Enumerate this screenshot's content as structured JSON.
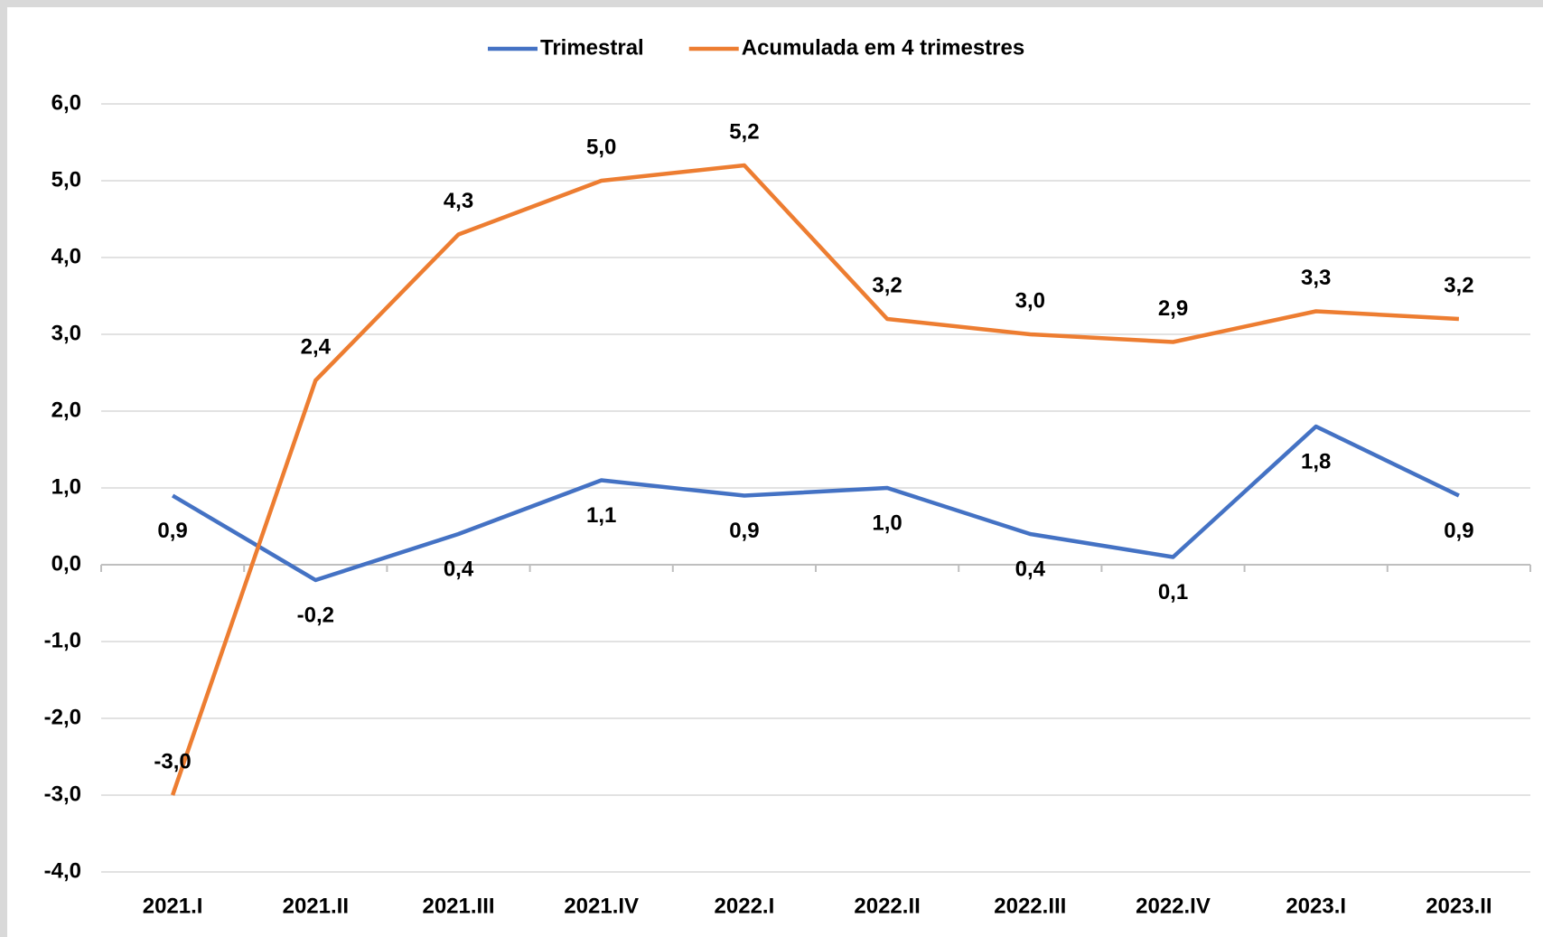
{
  "chart_data": {
    "type": "line",
    "categories": [
      "2021.I",
      "2021.II",
      "2021.III",
      "2021.IV",
      "2022.I",
      "2022.II",
      "2022.III",
      "2022.IV",
      "2023.I",
      "2023.II"
    ],
    "series": [
      {
        "name": "Trimestral",
        "color": "#4472c4",
        "values": [
          0.9,
          -0.2,
          0.4,
          1.1,
          0.9,
          1.0,
          0.4,
          0.1,
          1.8,
          0.9
        ],
        "value_labels": [
          "0,9",
          "-0,2",
          "0,4",
          "1,1",
          "0,9",
          "1,0",
          "0,4",
          "0,1",
          "1,8",
          "0,9"
        ]
      },
      {
        "name": "Acumulada em 4 trimestres",
        "color": "#ed7d31",
        "values": [
          -3.0,
          2.4,
          4.3,
          5.0,
          5.2,
          3.2,
          3.0,
          2.9,
          3.3,
          3.2
        ],
        "value_labels": [
          "-3,0",
          "2,4",
          "4,3",
          "5,0",
          "5,2",
          "3,2",
          "3,0",
          "2,9",
          "3,3",
          "3,2"
        ]
      }
    ],
    "ylim": [
      -4,
      6
    ],
    "yticks": [
      {
        "value": -4,
        "label": "-4,0"
      },
      {
        "value": -3,
        "label": "-3,0"
      },
      {
        "value": -2,
        "label": "-2,0"
      },
      {
        "value": -1,
        "label": "-1,0"
      },
      {
        "value": 0,
        "label": "0,0"
      },
      {
        "value": 1,
        "label": "1,0"
      },
      {
        "value": 2,
        "label": "2,0"
      },
      {
        "value": 3,
        "label": "3,0"
      },
      {
        "value": 4,
        "label": "4,0"
      },
      {
        "value": 5,
        "label": "5,0"
      },
      {
        "value": 6,
        "label": "6,0"
      }
    ],
    "grid": true,
    "legend": "top"
  }
}
